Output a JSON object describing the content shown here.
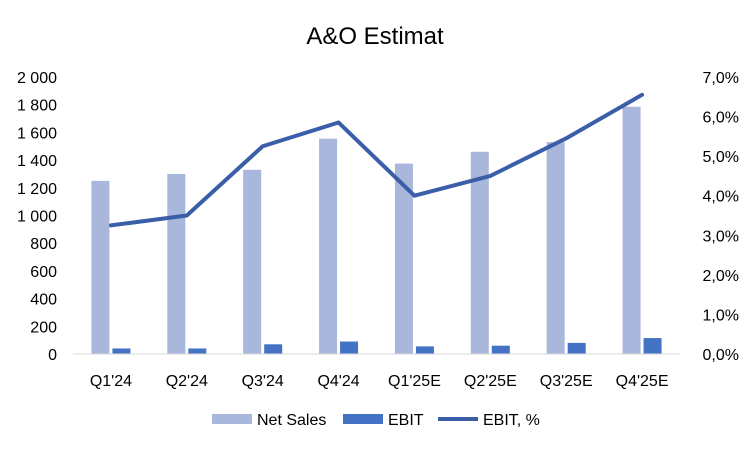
{
  "chart_data": {
    "type": "bar",
    "title": "A&O Estimat",
    "categories": [
      "Q1'24",
      "Q2'24",
      "Q3'24",
      "Q4'24",
      "Q1'25E",
      "Q2'25E",
      "Q3'25E",
      "Q4'25E"
    ],
    "series": [
      {
        "name": "Net Sales",
        "type": "bar",
        "axis": "left",
        "color": "#A9B7DC",
        "values": [
          1250,
          1300,
          1330,
          1555,
          1375,
          1460,
          1530,
          1785
        ]
      },
      {
        "name": "EBIT",
        "type": "bar",
        "axis": "left",
        "color": "#4472C4",
        "values": [
          40,
          40,
          70,
          90,
          55,
          60,
          80,
          115
        ]
      },
      {
        "name": "EBIT, %",
        "type": "line",
        "axis": "right",
        "color": "#3A5FA8",
        "values": [
          3.25,
          3.5,
          5.25,
          5.85,
          4.0,
          4.5,
          5.45,
          6.55
        ]
      }
    ],
    "y_left": {
      "min": 0,
      "max": 2000,
      "step": 200,
      "tick_labels": [
        "0",
        "200",
        "400",
        "600",
        "800",
        "1 000",
        "1 200",
        "1 400",
        "1 600",
        "1 800",
        "2 000"
      ]
    },
    "y_right": {
      "min": 0,
      "max": 7,
      "step": 1,
      "tick_labels": [
        "0,0%",
        "1,0%",
        "2,0%",
        "3,0%",
        "4,0%",
        "5,0%",
        "6,0%",
        "7,0%"
      ]
    },
    "grid": false,
    "legend": {
      "placement": "bottom",
      "labels": [
        "Net Sales",
        "EBIT",
        "EBIT, %"
      ]
    }
  }
}
